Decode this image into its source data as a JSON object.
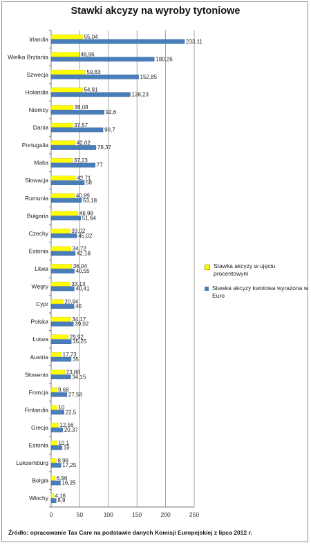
{
  "title": "Stawki akcyzy na wyroby tytoniowe",
  "source": "Źródło: opracowanie Tax Care na podstawie danych Komisji Europejskiej z lipca 2012 r.",
  "colors": {
    "series1": "#ffff00",
    "series2": "#4a7ebb",
    "grid": "#8c8c8c"
  },
  "chart_data": {
    "type": "bar",
    "orientation": "horizontal",
    "title": "Stawki akcyzy na wyroby tytoniowe",
    "categories": [
      "Irlandia",
      "Wielka Brytania",
      "Szwecja",
      "Holandia",
      "Niemcy",
      "Dania",
      "Portugalia",
      "Malta",
      "Słowacja",
      "Rumunia",
      "Bułgaria",
      "Czechy",
      "Estonia",
      "Litwa",
      "Węgry",
      "Cypr",
      "Polska",
      "Łotwa",
      "Austria",
      "Słowenia",
      "Francja",
      "Finlandia",
      "Grecja",
      "Estonia",
      "Luksemburg",
      "Belgia",
      "Włochy"
    ],
    "series": [
      {
        "name": "Stawka akcyzy w ujęciu procentowym",
        "values": [
          55.04,
          48.96,
          59.83,
          54.91,
          38.08,
          37.57,
          42.02,
          37.23,
          42.71,
          40.89,
          46.98,
          33.02,
          34.72,
          36.04,
          33.13,
          20.94,
          34.17,
          29.92,
          17.73,
          23.88,
          9.68,
          10,
          12.56,
          10.1,
          8.99,
          6.96,
          4.16
        ],
        "labels": [
          "55,04",
          "48,96",
          "59,83",
          "54,91",
          "38,08",
          "37,57",
          "42,02",
          "37,23",
          "42,71",
          "40,89",
          "46,98",
          "33,02",
          "34,72",
          "36,04",
          "33,13",
          "20,94",
          "34,17",
          "29,92",
          "17,73",
          "23,88",
          "9,68",
          "10",
          "12,56",
          "10,1",
          "8,99",
          "6,96",
          "4,16"
        ]
      },
      {
        "name": "Stawka akcyzy kwotowa wyrażona w Euro",
        "values": [
          233.11,
          180.26,
          152.85,
          138.23,
          92.6,
          90.7,
          78.37,
          77,
          58,
          53.18,
          51.64,
          45.02,
          42.18,
          40.55,
          40.41,
          40,
          39.02,
          35.25,
          35,
          34.15,
          27.58,
          22.5,
          20.37,
          19,
          17.25,
          16.25,
          8.9
        ],
        "labels": [
          "233,11",
          "180,26",
          "152,85",
          "138,23",
          "92,6",
          "90,7",
          "78,37",
          "77",
          "58",
          "53,18",
          "51,64",
          "45,02",
          "42,18",
          "40,55",
          "40,41",
          "40",
          "39,02",
          "35,25",
          "35",
          "34,15",
          "27,58",
          "22,5",
          "20,37",
          "19",
          "17,25",
          "16,25",
          "8,9"
        ]
      }
    ],
    "xlim": [
      0,
      250
    ],
    "ticks": [
      "0",
      "50",
      "100",
      "150",
      "200",
      "250"
    ],
    "grid": true,
    "legend_position": "right"
  }
}
